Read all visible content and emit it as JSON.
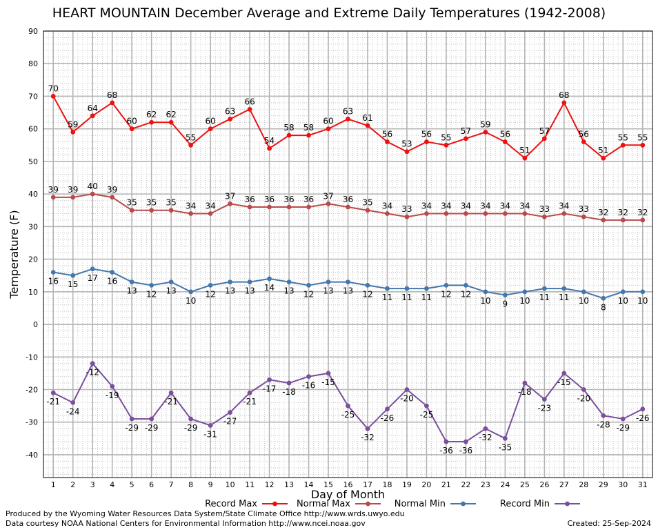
{
  "chart_data": {
    "type": "line",
    "title": "HEART MOUNTAIN December Average and Extreme Daily Temperatures (1942-2008)",
    "xlabel": "Day of Month",
    "ylabel": "Temperature (F)",
    "x": [
      1,
      2,
      3,
      4,
      5,
      6,
      7,
      8,
      9,
      10,
      11,
      12,
      13,
      14,
      15,
      16,
      17,
      18,
      19,
      20,
      21,
      22,
      23,
      24,
      25,
      26,
      27,
      28,
      29,
      30,
      31
    ],
    "x_ticks": [
      "1",
      "2",
      "3",
      "4",
      "5",
      "6",
      "7",
      "8",
      "9",
      "10",
      "11",
      "12",
      "13",
      "14",
      "15",
      "16",
      "17",
      "18",
      "19",
      "20",
      "21",
      "22",
      "23",
      "24",
      "25",
      "26",
      "27",
      "28",
      "29",
      "30",
      "31"
    ],
    "xlim": [
      0.5,
      31.5
    ],
    "ylim": [
      -47,
      90
    ],
    "y_ticks": [
      "-40",
      "-30",
      "-20",
      "-10",
      "0",
      "10",
      "20",
      "30",
      "40",
      "50",
      "60",
      "70",
      "80",
      "90"
    ],
    "grid": true,
    "series": [
      {
        "name": "Record Max",
        "color": "#ee1111",
        "values": [
          70,
          59,
          64,
          68,
          60,
          62,
          62,
          55,
          60,
          63,
          66,
          54,
          58,
          58,
          60,
          63,
          61,
          56,
          53,
          56,
          55,
          57,
          59,
          56,
          51,
          57,
          68,
          56,
          51,
          55,
          55
        ]
      },
      {
        "name": "Normal Max",
        "color": "#b84a4a",
        "values": [
          39,
          39,
          40,
          39,
          35,
          35,
          35,
          34,
          34,
          37,
          36,
          36,
          36,
          36,
          37,
          36,
          35,
          34,
          33,
          34,
          34,
          34,
          34,
          34,
          34,
          33,
          34,
          33,
          32,
          32,
          32
        ]
      },
      {
        "name": "Normal Min",
        "color": "#4477aa",
        "values": [
          16,
          15,
          17,
          16,
          13,
          12,
          13,
          10,
          12,
          13,
          13,
          14,
          13,
          12,
          13,
          13,
          12,
          11,
          11,
          11,
          12,
          12,
          10,
          9,
          10,
          11,
          11,
          10,
          8,
          10,
          10
        ]
      },
      {
        "name": "Record Min",
        "color": "#7b4f9b",
        "values": [
          -21,
          -24,
          -12,
          -19,
          -29,
          -29,
          -21,
          -29,
          -31,
          -27,
          -21,
          -17,
          -18,
          -16,
          -15,
          -25,
          -32,
          -26,
          -20,
          -25,
          -36,
          -36,
          -32,
          -35,
          -18,
          -23,
          -15,
          -20,
          -28,
          -29,
          -26
        ]
      }
    ]
  },
  "footer": {
    "producer": "Produced by the Wyoming Water Resources Data System/State Climate Office http://www.wrds.uwyo.edu",
    "courtesy": "Data courtesy NOAA National Centers for Environmental Information http://www.ncei.noaa.gov",
    "created": "Created: 25-Sep-2024"
  }
}
